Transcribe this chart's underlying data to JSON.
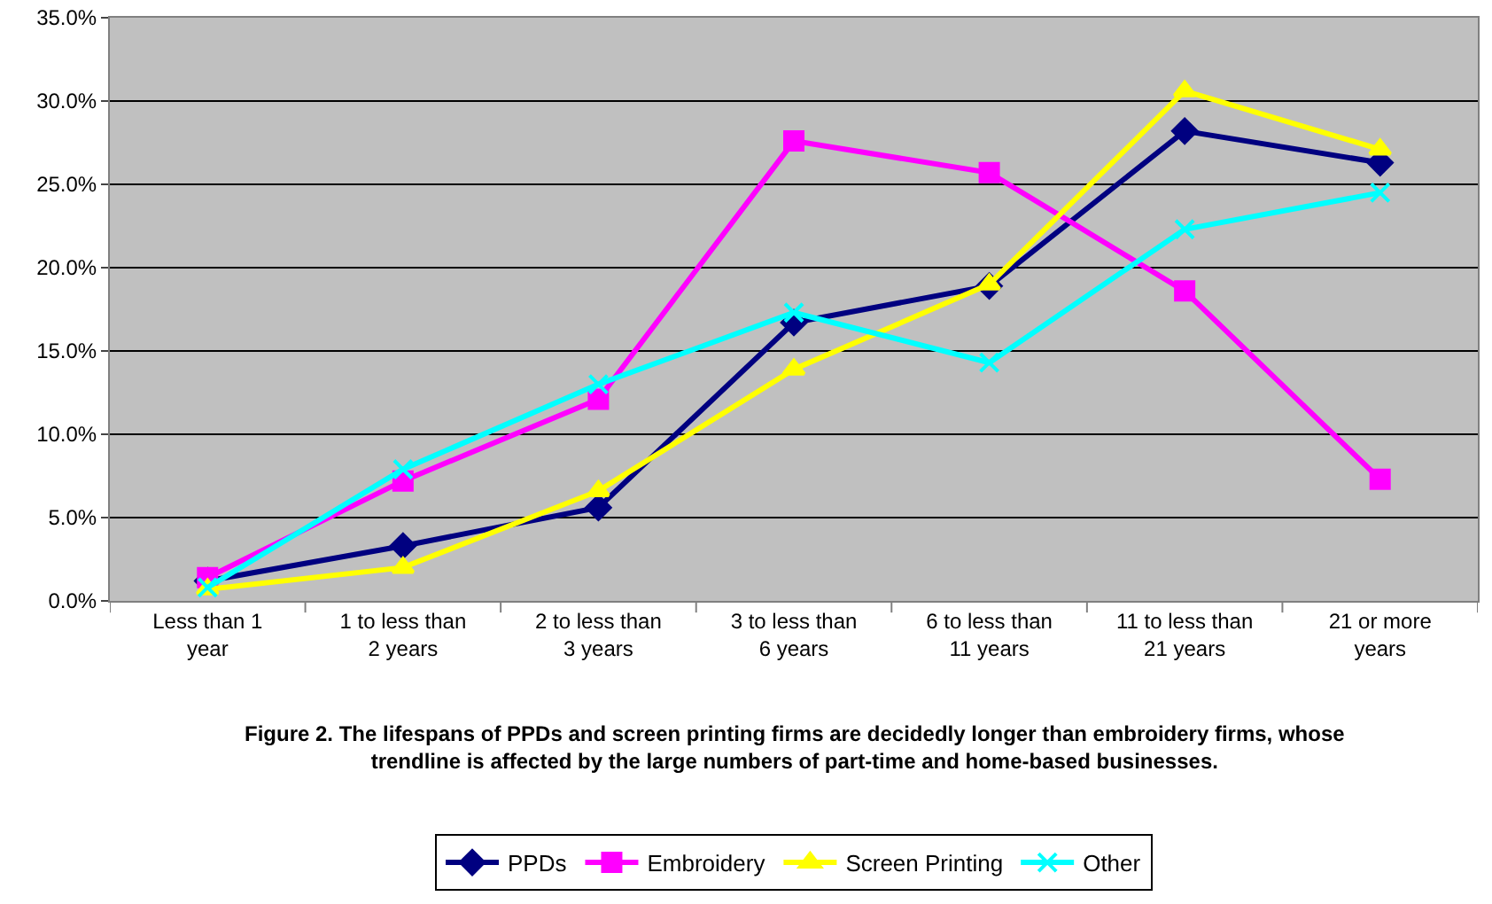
{
  "chart_data": {
    "type": "line",
    "categories": [
      "Less than 1 year",
      "1 to less than 2 years",
      "2 to less than 3 years",
      "3 to less than 6 years",
      "6 to less than 11 years",
      "11 to less than 21 years",
      "21 or more years"
    ],
    "series": [
      {
        "name": "PPDs",
        "color": "#000080",
        "marker": "diamond",
        "values": [
          1.2,
          3.3,
          5.6,
          16.7,
          18.9,
          28.2,
          26.3
        ]
      },
      {
        "name": "Embroidery",
        "color": "#ff00ff",
        "marker": "square",
        "values": [
          1.4,
          7.2,
          12.1,
          27.6,
          25.7,
          18.6,
          7.3
        ]
      },
      {
        "name": "Screen Printing",
        "color": "#ffff00",
        "marker": "triangle",
        "values": [
          0.7,
          2.0,
          6.6,
          13.9,
          19.0,
          30.6,
          27.1
        ]
      },
      {
        "name": "Other",
        "color": "#00ffff",
        "marker": "cross",
        "values": [
          0.8,
          7.9,
          13.0,
          17.3,
          14.3,
          22.3,
          24.5
        ]
      }
    ],
    "ylim": [
      0,
      35
    ],
    "yticks": [
      {
        "value": 0,
        "label": "0.0%"
      },
      {
        "value": 5,
        "label": "5.0%"
      },
      {
        "value": 10,
        "label": "10.0%"
      },
      {
        "value": 15,
        "label": "15.0%"
      },
      {
        "value": 20,
        "label": "20.0%"
      },
      {
        "value": 25,
        "label": "25.0%"
      },
      {
        "value": 30,
        "label": "30.0%"
      },
      {
        "value": 35,
        "label": "35.0%"
      }
    ],
    "grid": "y",
    "legend": "bottom",
    "line_style": "solid",
    "annotations": [
      "Figure 2. The lifespans of PPDs and screen printing firms are decidedly longer than embroidery firms, whose trendline is affected by the large numbers of part-time and home-based businesses."
    ]
  }
}
